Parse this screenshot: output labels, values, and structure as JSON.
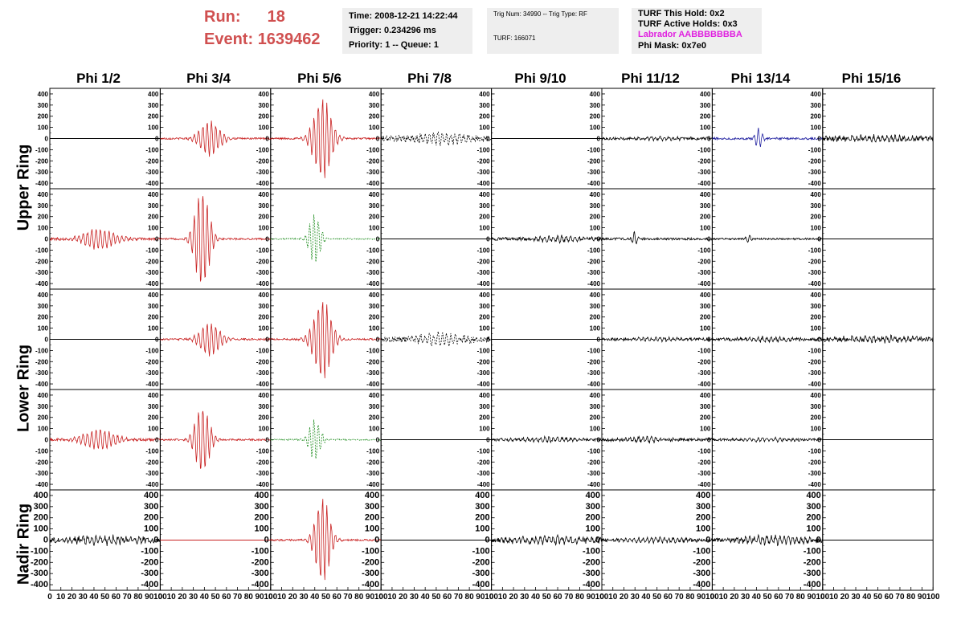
{
  "header": {
    "run_label": "Run:",
    "run_value": "18",
    "event_label": "Event:",
    "event_value": "1639462",
    "time": "Time: 2008-12-21 14:22:44",
    "trigger": "Trigger: 0.234296 ms",
    "priority": "Priority: 1 -- Queue: 1",
    "trig_num": "Trig Num: 34990 -- Trig Type: RF",
    "turf": "TURF: 166071",
    "turf_this_hold": "TURF This Hold: 0x2",
    "turf_active_holds": "TURF Active Holds: 0x3",
    "labrador": "Labrador AABBBBBBBA",
    "phi_mask": "Phi Mask: 0x7e0"
  },
  "colors": {
    "run_text": "#d05050",
    "labrador_text": "#e020e0",
    "info_bg": "#eeeeee",
    "trace_red": "#c82020",
    "trace_green": "#1a8a1a",
    "trace_blue": "#2020a0",
    "trace_black": "#000000"
  },
  "columns": [
    "Phi 1/2",
    "Phi 3/4",
    "Phi 5/6",
    "Phi 7/8",
    "Phi 9/10",
    "Phi 11/12",
    "Phi 13/14",
    "Phi 15/16"
  ],
  "rings": [
    "Upper Ring",
    "Lower Ring",
    "Nadir Ring"
  ],
  "chart_data": {
    "type": "line",
    "ylim": [
      -450,
      450
    ],
    "xlim": [
      0,
      100
    ],
    "yticks": [
      400,
      300,
      200,
      100,
      0,
      -100,
      -200,
      -300,
      -400
    ],
    "xticks": [
      0,
      10,
      20,
      30,
      40,
      50,
      60,
      70,
      80,
      90,
      100
    ],
    "grid": false,
    "panel_rows": [
      {
        "ring": "Upper Ring",
        "row": 1,
        "panels": [
          {
            "col": 1,
            "color": "black",
            "amp": 0,
            "style": "flat"
          },
          {
            "col": 2,
            "color": "red",
            "amp": 160,
            "center": 45,
            "width": 25,
            "noise": 8
          },
          {
            "col": 3,
            "color": "red",
            "amp": 370,
            "center": 47,
            "width": 22,
            "noise": 8
          },
          {
            "col": 4,
            "color": "black",
            "amp": 50,
            "center": 55,
            "width": 60,
            "noise": 25,
            "style": "dashed"
          },
          {
            "col": 5,
            "color": "black",
            "amp": 0,
            "style": "flat"
          },
          {
            "col": 6,
            "color": "black",
            "amp": 15,
            "center": 50,
            "width": 60,
            "noise": 12
          },
          {
            "col": 7,
            "color": "blue",
            "amp": 100,
            "center": 42,
            "width": 8,
            "noise": 10
          },
          {
            "col": 8,
            "color": "black",
            "amp": 25,
            "center": 50,
            "width": 80,
            "noise": 20
          }
        ]
      },
      {
        "ring": "Upper Ring",
        "row": 2,
        "panels": [
          {
            "col": 1,
            "color": "red",
            "amp": 90,
            "center": 45,
            "width": 40,
            "noise": 12
          },
          {
            "col": 2,
            "color": "red",
            "amp": 450,
            "center": 38,
            "width": 18,
            "noise": 8
          },
          {
            "col": 3,
            "color": "green",
            "amp": 230,
            "center": 40,
            "width": 14,
            "noise": 6,
            "style": "dashed"
          },
          {
            "col": 4,
            "color": "black",
            "amp": 0,
            "style": "flat"
          },
          {
            "col": 5,
            "color": "black",
            "amp": 25,
            "center": 60,
            "width": 60,
            "noise": 14
          },
          {
            "col": 6,
            "color": "black",
            "amp": 70,
            "center": 30,
            "width": 6,
            "noise": 10
          },
          {
            "col": 7,
            "color": "black",
            "amp": 40,
            "center": 33,
            "width": 6,
            "noise": 8
          },
          {
            "col": 8,
            "color": "black",
            "amp": 0,
            "style": "flat"
          }
        ]
      },
      {
        "ring": "Lower Ring",
        "row": 3,
        "panels": [
          {
            "col": 1,
            "color": "black",
            "amp": 0,
            "style": "flat"
          },
          {
            "col": 2,
            "color": "red",
            "amp": 150,
            "center": 45,
            "width": 25,
            "noise": 8
          },
          {
            "col": 3,
            "color": "red",
            "amp": 360,
            "center": 47,
            "width": 22,
            "noise": 8
          },
          {
            "col": 4,
            "color": "black",
            "amp": 50,
            "center": 55,
            "width": 60,
            "noise": 25,
            "style": "dashed"
          },
          {
            "col": 5,
            "color": "black",
            "amp": 0,
            "style": "flat"
          },
          {
            "col": 6,
            "color": "black",
            "amp": 15,
            "center": 50,
            "width": 60,
            "noise": 12
          },
          {
            "col": 7,
            "color": "black",
            "amp": 20,
            "center": 50,
            "width": 60,
            "noise": 14
          },
          {
            "col": 8,
            "color": "black",
            "amp": 25,
            "center": 50,
            "width": 80,
            "noise": 20
          }
        ]
      },
      {
        "ring": "Lower Ring",
        "row": 4,
        "panels": [
          {
            "col": 1,
            "color": "red",
            "amp": 90,
            "center": 45,
            "width": 40,
            "noise": 12
          },
          {
            "col": 2,
            "color": "red",
            "amp": 310,
            "center": 38,
            "width": 18,
            "noise": 8
          },
          {
            "col": 3,
            "color": "green",
            "amp": 190,
            "center": 40,
            "width": 14,
            "noise": 6,
            "style": "dashed"
          },
          {
            "col": 4,
            "color": "black",
            "amp": 0,
            "style": "flat"
          },
          {
            "col": 5,
            "color": "black",
            "amp": 20,
            "center": 50,
            "width": 60,
            "noise": 12
          },
          {
            "col": 6,
            "color": "black",
            "amp": 25,
            "center": 40,
            "width": 40,
            "noise": 14
          },
          {
            "col": 7,
            "color": "black",
            "amp": 15,
            "center": 50,
            "width": 60,
            "noise": 10
          },
          {
            "col": 8,
            "color": "black",
            "amp": 0,
            "style": "flat"
          }
        ]
      },
      {
        "ring": "Nadir Ring",
        "row": 5,
        "panels": [
          {
            "col": 1,
            "color": "black",
            "amp": 35,
            "center": 50,
            "width": 80,
            "noise": 22
          },
          {
            "col": 2,
            "color": "red",
            "amp": 0,
            "style": "flat"
          },
          {
            "col": 3,
            "color": "red",
            "amp": 390,
            "center": 47,
            "width": 18,
            "noise": 8
          },
          {
            "col": 4,
            "color": "black",
            "amp": 0,
            "style": "flat"
          },
          {
            "col": 5,
            "color": "black",
            "amp": 30,
            "center": 50,
            "width": 80,
            "noise": 22
          },
          {
            "col": 6,
            "color": "black",
            "amp": 20,
            "center": 50,
            "width": 80,
            "noise": 14
          },
          {
            "col": 7,
            "color": "black",
            "amp": 35,
            "center": 55,
            "width": 70,
            "noise": 20
          },
          {
            "col": 8,
            "color": "black",
            "amp": 0,
            "style": "flat"
          }
        ]
      }
    ]
  }
}
